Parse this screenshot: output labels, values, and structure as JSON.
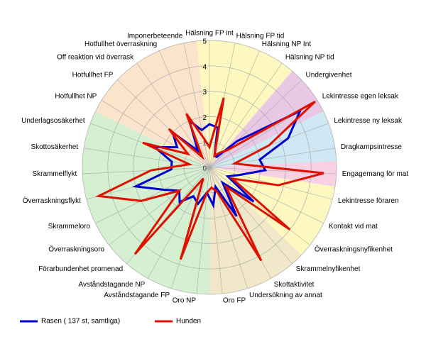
{
  "chart_data": {
    "type": "radar",
    "categories": [
      "Hälsning FP int",
      "Hälsning FP tid",
      "Hälsning NP Int",
      "Hälsning NP tid",
      "Undergivenhet",
      "Lekintresse egen leksak",
      "Lekintresse ny leksak",
      "Dragkampsintresse",
      "Engagemang för mat",
      "Lekintresse föraren",
      "Kontakt vid mat",
      "Överraskningsnyfikenhet",
      "Skrammelnyfikenhet",
      "Skottaktivitet",
      "Undersökning av annat",
      "Oro FP",
      "Oro NP",
      "Avståndstagande FP",
      "Avståndstagande NP",
      "Förarbundenhet promenad",
      "Överraskningsoro",
      "Skrammeloro",
      "Överraskningsflykt",
      "Skrammelflykt",
      "Skottosäkerhet",
      "Underlagsosäkerhet",
      "Hotfullhet NP",
      "Hotfullhet FP",
      "Off reaktion vid överrask",
      "Hotfullhet överraskning",
      "Imponerbeteende"
    ],
    "series": [
      {
        "name": "Rasen ( 137 st, samtliga)",
        "color": "#0000cc",
        "values": [
          1.7,
          1.6,
          0.5,
          0.5,
          1.5,
          4.2,
          3.3,
          2.0,
          2.2,
          1.2,
          0.8,
          2.2,
          0.8,
          2.2,
          0.8,
          1.5,
          1.0,
          1.5,
          1.3,
          1.8,
          1.5,
          2.0,
          3.0,
          1.5,
          1.5,
          2.3,
          1.5,
          2.0,
          0.8,
          2.0,
          1.5
        ]
      },
      {
        "name": "Hunden",
        "color": "#dd1100",
        "values": [
          0.8,
          2.8,
          0.5,
          0.7,
          1.0,
          4.9,
          2.5,
          1.0,
          4.5,
          2.8,
          1.0,
          4.0,
          1.0,
          4.2,
          1.0,
          0.8,
          1.0,
          3.8,
          0.5,
          4.5,
          1.5,
          3.0,
          4.5,
          2.3,
          0.8,
          2.8,
          1.0,
          2.2,
          0.5,
          2.3,
          1.2
        ]
      }
    ],
    "ylim": [
      0,
      5
    ],
    "yticks": [
      0,
      1,
      2,
      3,
      4,
      5
    ],
    "grid": true,
    "sector_colors": [
      "#fdf8c0",
      "#fdf8c0",
      "#fdf8c0",
      "#fdf8c0",
      "#e8c8e4",
      "#e8c8e4",
      "#cfe8f4",
      "#cfe8f4",
      "#f8d0e4",
      "#fdf8c0",
      "#fdf8c0",
      "#fdf8c0",
      "#f0e8c8",
      "#f0e8c8",
      "#f0e8c8",
      "#f0e8c8",
      "#d4f0d0",
      "#d4f0d0",
      "#d4f0d0",
      "#d4f0d0",
      "#d4f0d0",
      "#d4f0d0",
      "#d4f0d0",
      "#d4f0d0",
      "#d4f0d0",
      "#d4f0d0",
      "#fce4cc",
      "#fce4cc",
      "#fce4cc",
      "#fce4cc",
      "#fce4cc"
    ],
    "legend": "bottom-left"
  }
}
